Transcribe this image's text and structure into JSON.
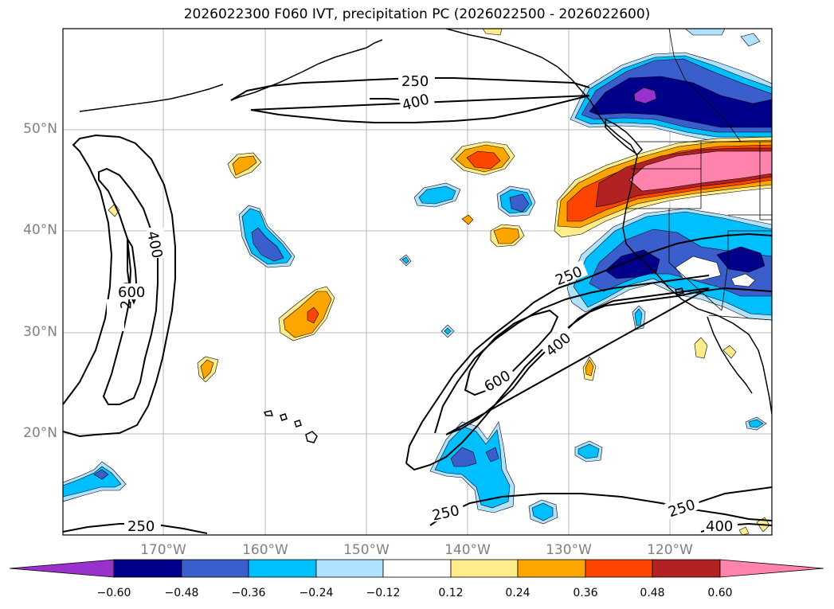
{
  "title": "2026022300 F060 IVT, precipitation PC (2026022500 - 2026022600)",
  "lat_labels": [
    "50°N",
    "40°N",
    "30°N",
    "20°N"
  ],
  "lon_labels": [
    "170°W",
    "160°W",
    "150°W",
    "140°W",
    "130°W",
    "120°W"
  ],
  "colorbar": {
    "colors": [
      "#9932cc",
      "#00008b",
      "#3a5fcd",
      "#00bfff",
      "#b0e2ff",
      "#ffffff",
      "#ffec8b",
      "#ffa500",
      "#ff4500",
      "#b22222",
      "#ff83aa"
    ],
    "tick_labels": [
      "−0.60",
      "−0.48",
      "−0.36",
      "−0.24",
      "−0.12",
      "0.12",
      "0.24",
      "0.36",
      "0.48",
      "0.60"
    ]
  },
  "contour_labels": [
    "250",
    "400",
    "250",
    "400",
    "600",
    "250",
    "250",
    "400",
    "600",
    "250",
    "250",
    "250",
    "400"
  ],
  "colors": {
    "purple": "#9932cc",
    "navy": "#00008b",
    "royal": "#3a5fcd",
    "sky": "#00bfff",
    "pale": "#b0e2ff",
    "yellow": "#ffec8b",
    "orange": "#ffa500",
    "redorange": "#ff4500",
    "firebrick": "#b22222",
    "pink": "#ff83aa"
  }
}
